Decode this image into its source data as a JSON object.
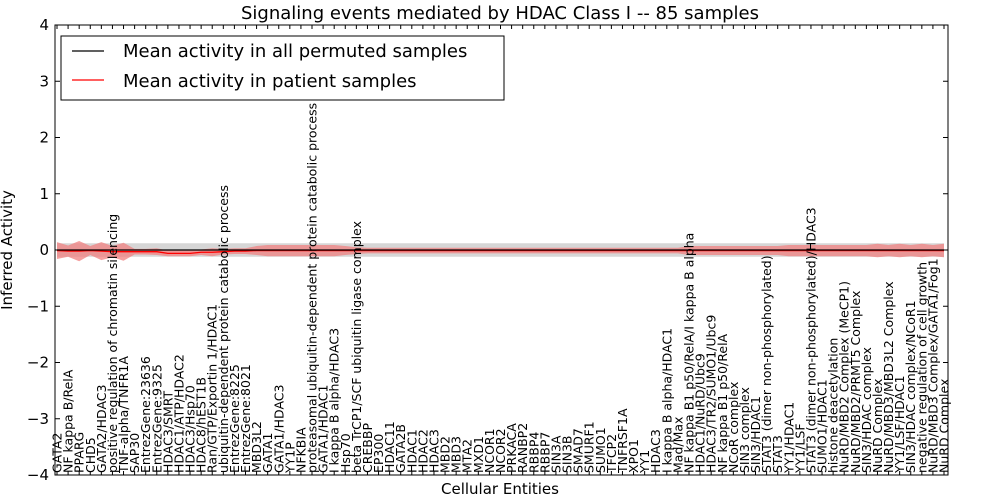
{
  "chart_data": {
    "type": "line",
    "title": "Signaling events mediated by HDAC Class I -- 85 samples",
    "xlabel": "Cellular Entities",
    "ylabel": "Inferred Activity",
    "ylim": [
      -4,
      4
    ],
    "yticks": [
      "4",
      "3",
      "2",
      "1",
      "0",
      "−1",
      "−2",
      "−3",
      "−4"
    ],
    "grid": false,
    "legend_position": "top-left",
    "colors": {
      "permuted": "#000000",
      "patient": "#ff0000",
      "permuted_band": "#c8c8c8",
      "patient_band": "#f08080"
    },
    "categories": [
      "GATA2",
      "NF kappa B/RelA",
      "PPARG",
      "CHD5",
      "GATA2/HDAC3",
      "positive regulation of chromatin silencing",
      "TNF-alpha/TNFR1A",
      "SAP30",
      "EntrezGene:23636",
      "EntrezGene:9325",
      "HDAC3/SMRT",
      "HDAC1/ATP/HDAC2",
      "HDAC3/Hsp70",
      "HDAC8/hEST1B",
      "Ran/GTP/Exportin 1/HDAC1",
      "ubiquitin-dependent protein catabolic process",
      "EntrezGene:8225",
      "EntrezGene:8021",
      "MBD3L2",
      "GATA1",
      "GATA1/HDAC3",
      "YY1P",
      "NFKBIA",
      "proteasomal ubiquitin-dependent protein catabolic process",
      "GATA1/HDAC1",
      "I kappa B alpha/HDAC3",
      "Hsp70",
      "beta TrCP1/SCF ubiquitin ligase complex",
      "CREBBP",
      "EP300",
      "HDAC11",
      "GATA2B",
      "HDAC1",
      "HDAC2",
      "HDAC3",
      "MBD2",
      "MBD3",
      "MTA2",
      "MXD1",
      "NCOR1",
      "NCOR2",
      "PRKACA",
      "RANBP2",
      "RBBP4",
      "RBBP7",
      "SIN3A",
      "SIN3B",
      "SMAD7",
      "SMURF1",
      "SUMO1",
      "TFCP2",
      "TNFRSF1A",
      "XPO1",
      "YY1",
      "HDAC3",
      "I kappa B alpha/HDAC1",
      "Mad/Max",
      "NF kappa B1 p50/RelA/I kappa B alpha",
      "HDAC1/NuRD/Ubc9",
      "HDAC3/TR2/SUMO1/Ubc9",
      "NF kappa B1 p50/RelA",
      "NCoR complex",
      "SIN3 complex",
      "SIN3/HDAC1",
      "STAT3 (dimer non-phosphorylated)",
      "STAT3",
      "YY1/HDAC1",
      "YY1/LSF",
      "STAT3 (dimer non-phosphorylated)/HDAC3",
      "SUMO1/HDAC1",
      "histone deacetylation",
      "NuRD/MBD2 Complex (MeCP1)",
      "NuRD/MBD2/PRMT5 Complex",
      "SIN3/HDAC complex",
      "NuRD Complex",
      "NuRD/MBD3/MBD3L2 Complex",
      "YY1/LSF/HDAC1",
      "SIN3/HDAC complex/NCoR1",
      "negative regulation of cell growth",
      "NuRD/MBD3 Complex/GATA1/Fog1",
      "NuRD Complex"
    ],
    "series": [
      {
        "name": "Mean activity in all permuted samples",
        "color": "#000000",
        "values": [
          0.0,
          0.0,
          0.0,
          0.0,
          0.0,
          0.0,
          0.0,
          0.0,
          0.0,
          0.0,
          0.0,
          0.0,
          0.0,
          0.0,
          0.0,
          0.0,
          0.0,
          0.0,
          0.0,
          0.0,
          0.0,
          0.0,
          0.0,
          0.0,
          0.0,
          0.0,
          0.0,
          0.0,
          0.0,
          0.0,
          0.0,
          0.0,
          0.0,
          0.0,
          0.0,
          0.0,
          0.0,
          0.0,
          0.0,
          0.0,
          0.0,
          0.0,
          0.0,
          0.0,
          0.0,
          0.0,
          0.0,
          0.0,
          0.0,
          0.0,
          0.0,
          0.0,
          0.0,
          0.0,
          0.0,
          0.0,
          0.0,
          0.0,
          0.0,
          0.0,
          0.0,
          0.0,
          0.0,
          0.0,
          0.0,
          0.0,
          0.0,
          0.0,
          0.0,
          0.0,
          0.0,
          0.0,
          0.0,
          0.0,
          0.0,
          0.0,
          0.0,
          0.0,
          0.0,
          0.0,
          0.0
        ],
        "band": [
          0.12,
          0.12,
          0.12,
          0.12,
          0.12,
          0.12,
          0.12,
          0.12,
          0.12,
          0.12,
          0.12,
          0.12,
          0.12,
          0.12,
          0.12,
          0.12,
          0.12,
          0.12,
          0.12,
          0.12,
          0.12,
          0.12,
          0.12,
          0.12,
          0.12,
          0.12,
          0.12,
          0.12,
          0.12,
          0.12,
          0.12,
          0.12,
          0.12,
          0.12,
          0.12,
          0.12,
          0.12,
          0.12,
          0.12,
          0.12,
          0.12,
          0.12,
          0.12,
          0.12,
          0.12,
          0.12,
          0.12,
          0.12,
          0.12,
          0.12,
          0.12,
          0.12,
          0.12,
          0.12,
          0.12,
          0.12,
          0.12,
          0.12,
          0.12,
          0.12,
          0.12,
          0.12,
          0.12,
          0.12,
          0.12,
          0.12,
          0.12,
          0.12,
          0.12,
          0.12,
          0.12,
          0.12,
          0.12,
          0.12,
          0.12,
          0.12,
          0.12,
          0.12,
          0.12,
          0.12,
          0.12
        ]
      },
      {
        "name": "Mean activity in patient samples",
        "color": "#ff0000",
        "values": [
          -0.01,
          -0.02,
          -0.02,
          -0.01,
          -0.02,
          -0.03,
          -0.03,
          -0.03,
          -0.03,
          -0.03,
          -0.06,
          -0.06,
          -0.06,
          -0.04,
          -0.04,
          -0.03,
          -0.02,
          -0.02,
          -0.01,
          -0.01,
          -0.01,
          -0.01,
          -0.01,
          -0.01,
          -0.01,
          -0.01,
          -0.01,
          -0.01,
          -0.01,
          -0.01,
          -0.01,
          -0.01,
          -0.01,
          -0.01,
          -0.01,
          -0.01,
          -0.01,
          -0.01,
          -0.01,
          -0.01,
          -0.01,
          -0.01,
          -0.01,
          -0.01,
          -0.01,
          -0.01,
          -0.01,
          -0.01,
          -0.01,
          -0.01,
          -0.01,
          -0.01,
          -0.01,
          -0.01,
          -0.01,
          -0.01,
          -0.01,
          -0.01,
          -0.01,
          -0.01,
          -0.01,
          -0.01,
          -0.01,
          -0.01,
          -0.01,
          -0.01,
          -0.01,
          -0.01,
          -0.01,
          -0.01,
          -0.01,
          -0.01,
          -0.01,
          -0.01,
          -0.01,
          -0.01,
          -0.01,
          -0.01,
          -0.01,
          -0.01,
          -0.01
        ],
        "band": [
          0.15,
          0.1,
          0.18,
          0.08,
          0.16,
          0.1,
          0.16,
          0.05,
          0.05,
          0.06,
          0.05,
          0.05,
          0.05,
          0.05,
          0.07,
          0.05,
          0.05,
          0.05,
          0.08,
          0.1,
          0.1,
          0.1,
          0.1,
          0.1,
          0.1,
          0.1,
          0.08,
          0.06,
          0.05,
          0.05,
          0.05,
          0.05,
          0.05,
          0.05,
          0.05,
          0.05,
          0.05,
          0.05,
          0.05,
          0.05,
          0.05,
          0.05,
          0.05,
          0.05,
          0.05,
          0.05,
          0.05,
          0.05,
          0.05,
          0.05,
          0.05,
          0.05,
          0.05,
          0.05,
          0.05,
          0.05,
          0.05,
          0.08,
          0.08,
          0.08,
          0.08,
          0.08,
          0.08,
          0.08,
          0.08,
          0.08,
          0.1,
          0.1,
          0.1,
          0.1,
          0.1,
          0.1,
          0.1,
          0.1,
          0.12,
          0.1,
          0.12,
          0.1,
          0.12,
          0.1,
          0.12
        ]
      }
    ]
  }
}
